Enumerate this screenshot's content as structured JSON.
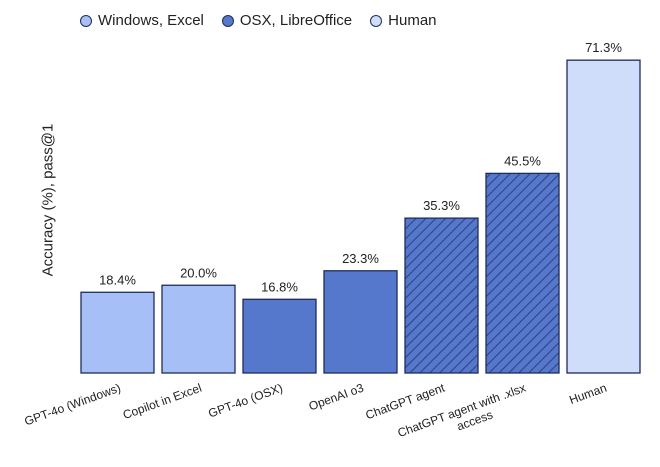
{
  "colors": {
    "windows_excel": "#a6bff7",
    "osx_libreoffice": "#5577cc",
    "human": "#cfdcfa",
    "border": "#1f2d5a",
    "hatch": "#2f4484"
  },
  "legend": [
    {
      "label": "Windows, Excel",
      "color_key": "windows_excel"
    },
    {
      "label": "OSX, LibreOffice",
      "color_key": "osx_libreoffice"
    },
    {
      "label": "Human",
      "color_key": "human"
    }
  ],
  "chart_data": {
    "type": "bar",
    "ylabel": "Accuracy (%), pass@1",
    "ylim": [
      0,
      80
    ],
    "grid": false,
    "legend_position": "top-left",
    "categories": [
      "GPT-4o (Windows)",
      "Copilot in Excel",
      "GPT-4o (OSX)",
      "OpenAI o3",
      "ChatGPT agent",
      "ChatGPT agent with .xlsx access",
      "Human"
    ],
    "values": [
      18.4,
      20.0,
      16.8,
      23.3,
      35.3,
      45.5,
      71.3
    ],
    "value_labels": [
      "18.4%",
      "20.0%",
      "16.8%",
      "23.3%",
      "35.3%",
      "45.5%",
      "71.3%"
    ],
    "bar_group": [
      "windows_excel",
      "windows_excel",
      "osx_libreoffice",
      "osx_libreoffice",
      "osx_libreoffice",
      "osx_libreoffice",
      "human"
    ],
    "hatched": [
      false,
      false,
      false,
      false,
      true,
      true,
      false
    ]
  }
}
